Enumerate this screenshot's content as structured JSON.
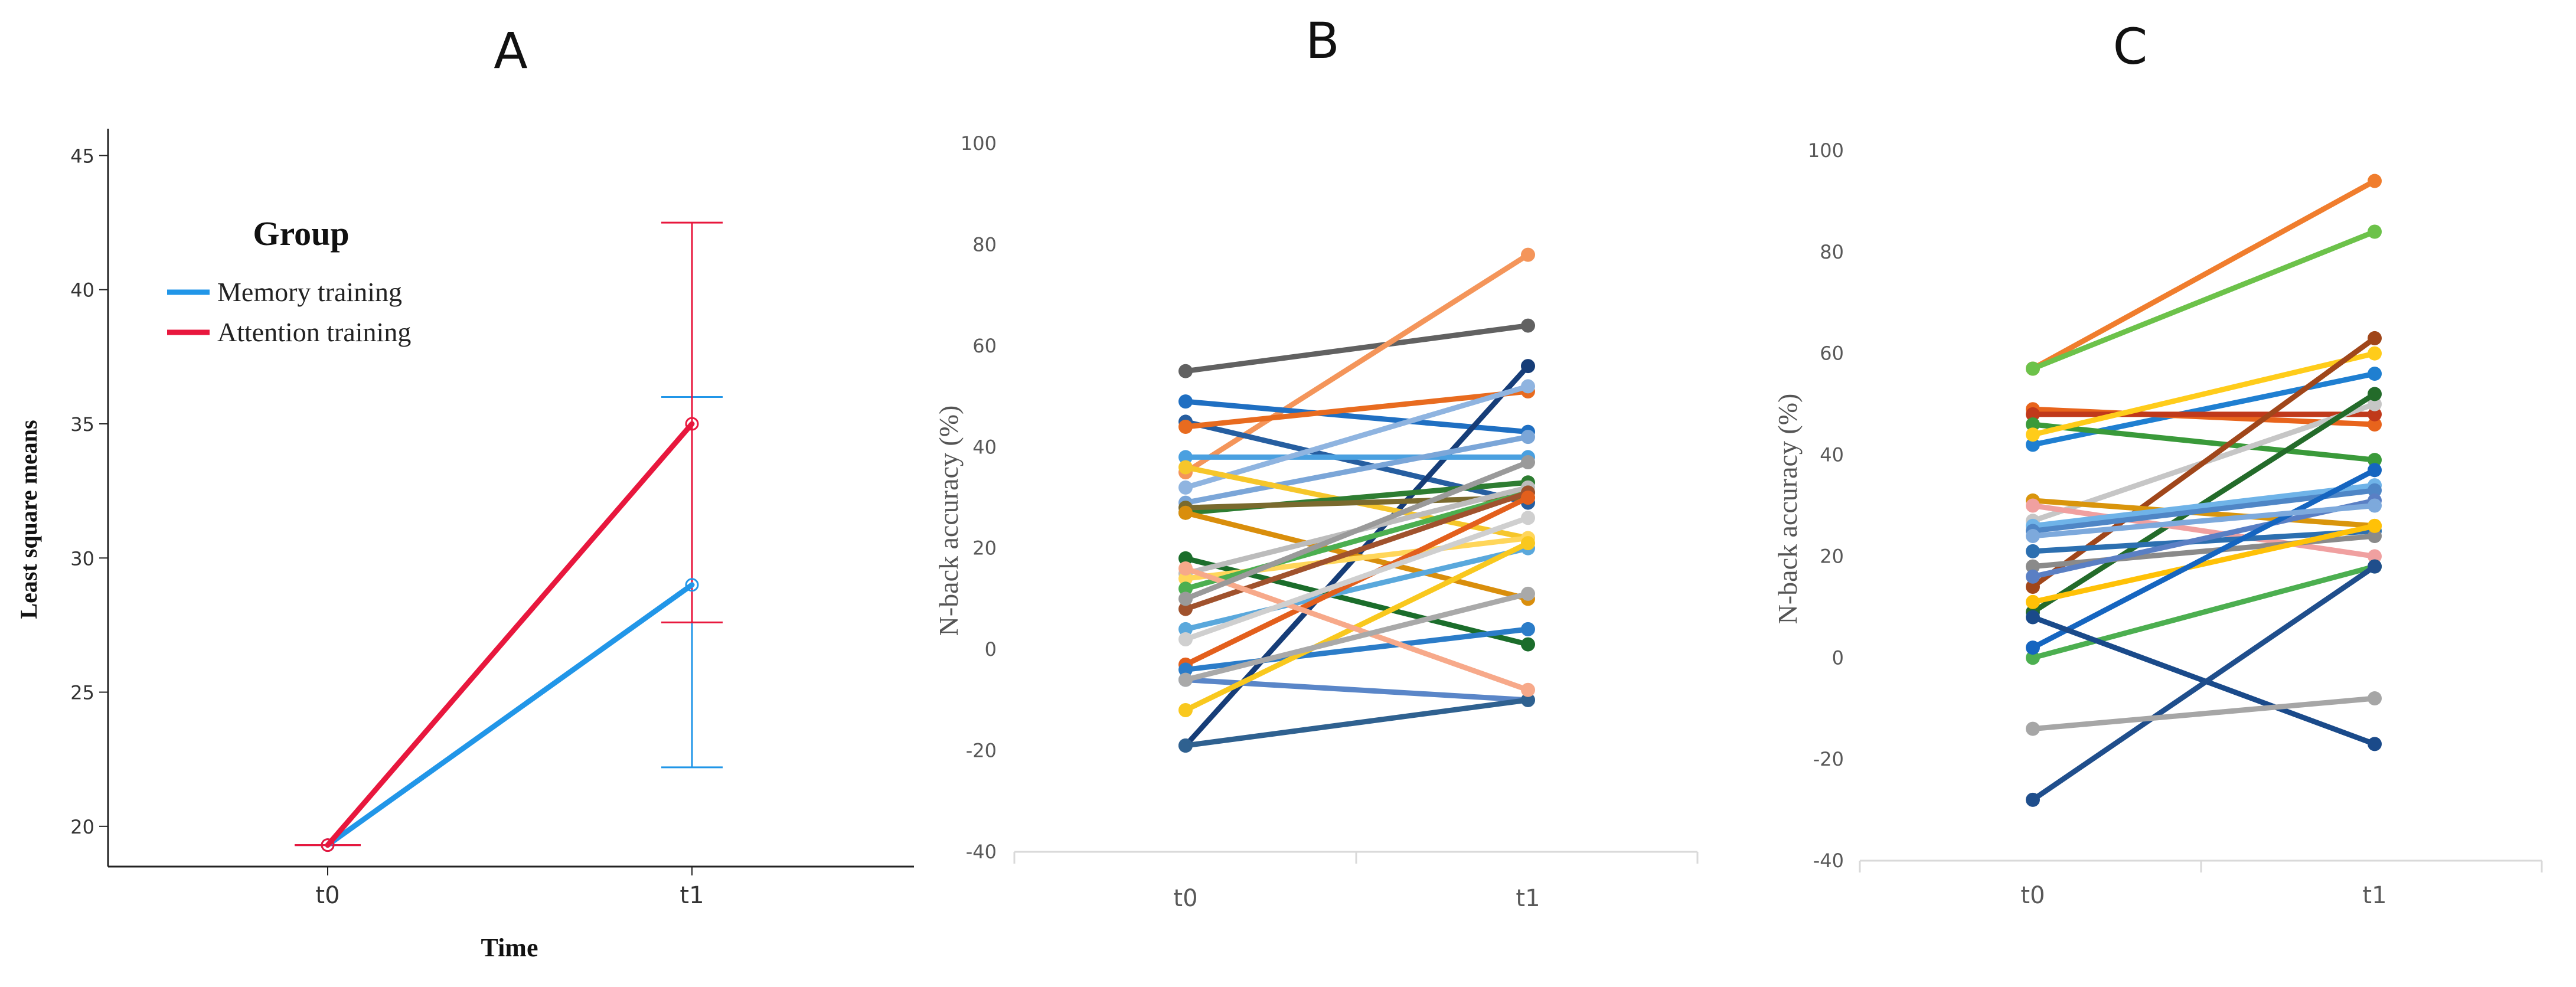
{
  "chart_data": [
    {
      "panel": "A",
      "type": "line",
      "title": "A",
      "xlabel": "Time",
      "ylabel": "Least square means",
      "categories": [
        "t0",
        "t1"
      ],
      "ylim": [
        18.5,
        46
      ],
      "yticks": [
        20,
        25,
        30,
        35,
        40,
        45
      ],
      "legend": {
        "title": "Group",
        "position": "top-left"
      },
      "series": [
        {
          "name": "Memory training",
          "color": "#2196e8",
          "values": [
            19.3,
            29.0
          ],
          "error_low": [
            19.3,
            22.2
          ],
          "error_high": [
            19.3,
            36.0
          ]
        },
        {
          "name": "Attention training",
          "color": "#e8173d",
          "values": [
            19.3,
            35.0
          ],
          "error_low": [
            19.3,
            27.6
          ],
          "error_high": [
            19.3,
            42.5
          ]
        }
      ]
    },
    {
      "panel": "B",
      "type": "line",
      "title": "B",
      "xlabel": "",
      "ylabel": "N-back accuracy (%)",
      "categories": [
        "t0",
        "t1"
      ],
      "ylim": [
        -40,
        100
      ],
      "yticks": [
        -40,
        -20,
        0,
        20,
        40,
        60,
        80,
        100
      ],
      "series": [
        {
          "values": [
            55,
            64
          ],
          "color": "#616161"
        },
        {
          "values": [
            35,
            78
          ],
          "color": "#f4955a"
        },
        {
          "values": [
            49,
            43
          ],
          "color": "#1f6fc2"
        },
        {
          "values": [
            45,
            29
          ],
          "color": "#265ea0"
        },
        {
          "values": [
            -19,
            56
          ],
          "color": "#163d78"
        },
        {
          "values": [
            44,
            51
          ],
          "color": "#e86b1f"
        },
        {
          "values": [
            38,
            38
          ],
          "color": "#4aa0e0"
        },
        {
          "values": [
            32,
            52
          ],
          "color": "#8fb4e0"
        },
        {
          "values": [
            29,
            42
          ],
          "color": "#7ba6d8"
        },
        {
          "values": [
            36,
            22
          ],
          "color": "#f6c62a"
        },
        {
          "values": [
            27,
            33
          ],
          "color": "#2e7d32"
        },
        {
          "values": [
            28,
            30
          ],
          "color": "#7a6a2e"
        },
        {
          "values": [
            27,
            10
          ],
          "color": "#d98e0c"
        },
        {
          "values": [
            18,
            1
          ],
          "color": "#1b6d2b"
        },
        {
          "values": [
            15,
            32
          ],
          "color": "#bcbcbc"
        },
        {
          "values": [
            14,
            22
          ],
          "color": "#ffd65a"
        },
        {
          "values": [
            12,
            31
          ],
          "color": "#4caf50"
        },
        {
          "values": [
            8,
            31
          ],
          "color": "#a0522d"
        },
        {
          "values": [
            4,
            20
          ],
          "color": "#5aa8dc"
        },
        {
          "values": [
            -3,
            30
          ],
          "color": "#e35f1c"
        },
        {
          "values": [
            -4,
            4
          ],
          "color": "#2b7cc8"
        },
        {
          "values": [
            -6,
            -10
          ],
          "color": "#5a86c8"
        },
        {
          "values": [
            -12,
            21
          ],
          "color": "#f9c81e"
        },
        {
          "values": [
            -19,
            -10
          ],
          "color": "#2f6190"
        },
        {
          "values": [
            16,
            -8
          ],
          "color": "#f7a98a"
        },
        {
          "values": [
            -6,
            11
          ],
          "color": "#a9a9a9"
        },
        {
          "values": [
            2,
            26
          ],
          "color": "#cfcfcf"
        },
        {
          "values": [
            10,
            37
          ],
          "color": "#9a9a9a"
        }
      ]
    },
    {
      "panel": "C",
      "type": "line",
      "title": "C",
      "xlabel": "",
      "ylabel": "N-back accuracy (%)",
      "categories": [
        "t0",
        "t1"
      ],
      "ylim": [
        -40,
        100
      ],
      "yticks": [
        -40,
        -20,
        0,
        20,
        40,
        60,
        80,
        100
      ],
      "series": [
        {
          "values": [
            57,
            94
          ],
          "color": "#f07d2d"
        },
        {
          "values": [
            57,
            84
          ],
          "color": "#6cc24a"
        },
        {
          "values": [
            42,
            56
          ],
          "color": "#1f7fd1"
        },
        {
          "values": [
            49,
            46
          ],
          "color": "#e8641c"
        },
        {
          "values": [
            48,
            48
          ],
          "color": "#c0391b"
        },
        {
          "values": [
            46,
            39
          ],
          "color": "#3a9a3a"
        },
        {
          "values": [
            44,
            60
          ],
          "color": "#ffcc1a"
        },
        {
          "values": [
            27,
            50
          ],
          "color": "#c6c6c6"
        },
        {
          "values": [
            14,
            63
          ],
          "color": "#a0461a"
        },
        {
          "values": [
            9,
            52
          ],
          "color": "#236b2a"
        },
        {
          "values": [
            31,
            26
          ],
          "color": "#d9950c"
        },
        {
          "values": [
            30,
            20
          ],
          "color": "#f0a0a0"
        },
        {
          "values": [
            26,
            34
          ],
          "color": "#6fb3e8"
        },
        {
          "values": [
            25,
            33
          ],
          "color": "#4f86c6"
        },
        {
          "values": [
            21,
            25
          ],
          "color": "#2c6fb0"
        },
        {
          "values": [
            18,
            24
          ],
          "color": "#8a8a8a"
        },
        {
          "values": [
            16,
            31
          ],
          "color": "#5a7fc4"
        },
        {
          "values": [
            11,
            26
          ],
          "color": "#ffc107"
        },
        {
          "values": [
            0,
            18
          ],
          "color": "#4caf50"
        },
        {
          "values": [
            2,
            37
          ],
          "color": "#1565c0"
        },
        {
          "values": [
            8,
            -17
          ],
          "color": "#1a4a8a"
        },
        {
          "values": [
            -28,
            18
          ],
          "color": "#1f4e8c"
        },
        {
          "values": [
            -14,
            -8
          ],
          "color": "#a6a6a6"
        },
        {
          "values": [
            24,
            30
          ],
          "color": "#7da9dc"
        }
      ]
    }
  ]
}
